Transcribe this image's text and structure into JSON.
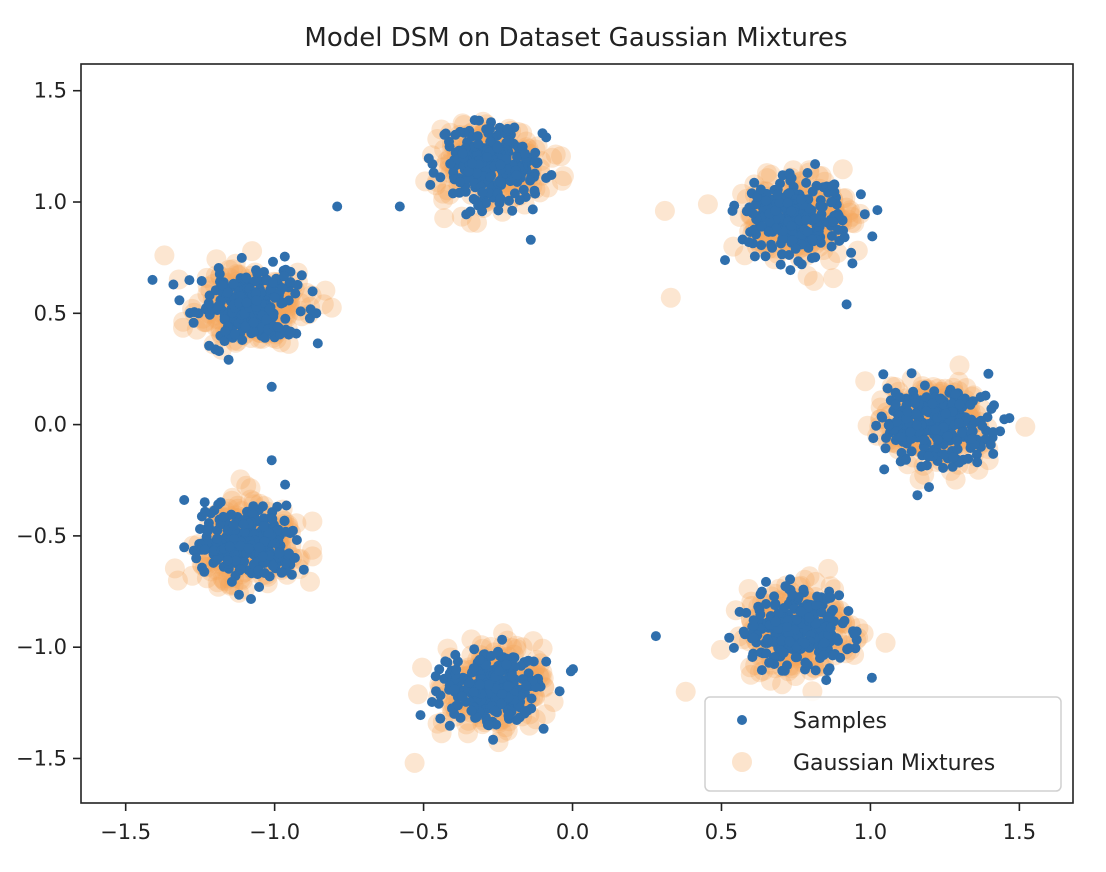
{
  "chart_data": {
    "type": "scatter",
    "title": "Model DSM on Dataset Gaussian Mixtures",
    "xlabel": "",
    "ylabel": "",
    "xlim": [
      -1.65,
      1.68
    ],
    "ylim": [
      -1.7,
      1.62
    ],
    "x_ticks": [
      -1.5,
      -1.0,
      -0.5,
      0.0,
      0.5,
      1.0,
      1.5
    ],
    "x_tick_labels": [
      "−1.5",
      "−1.0",
      "−0.5",
      "0.0",
      "0.5",
      "1.0",
      "1.5"
    ],
    "y_ticks": [
      1.5,
      1.0,
      0.5,
      0.0,
      -0.5,
      -1.0,
      -1.5
    ],
    "y_tick_labels": [
      "1.5",
      "1.0",
      "0.5",
      "0.0",
      "−0.5",
      "−1.0",
      "−1.5"
    ],
    "grid": false,
    "legend": {
      "position": "lower-right",
      "entries": [
        "Samples",
        "Gaussian Mixtures"
      ]
    },
    "colors": {
      "samples": "#2f6fad",
      "mixtures": "#f5a75a"
    },
    "series": [
      {
        "name": "Samples",
        "cluster_centers": [
          [
            -0.27,
            1.17
          ],
          [
            0.75,
            0.93
          ],
          [
            -1.08,
            0.53
          ],
          [
            1.22,
            0.0
          ],
          [
            -1.1,
            -0.53
          ],
          [
            0.75,
            -0.93
          ],
          [
            -0.27,
            -1.18
          ]
        ],
        "points_per_cluster": 260,
        "outliers": [
          [
            -1.41,
            0.65
          ],
          [
            -0.79,
            0.98
          ],
          [
            -0.58,
            0.98
          ],
          [
            0.28,
            -0.95
          ],
          [
            0.92,
            0.54
          ],
          [
            -1.01,
            0.17
          ],
          [
            -1.01,
            -0.16
          ],
          [
            -0.14,
            0.83
          ]
        ]
      },
      {
        "name": "Gaussian Mixtures",
        "cluster_centers": [
          [
            -0.27,
            1.17
          ],
          [
            0.75,
            0.93
          ],
          [
            -1.08,
            0.53
          ],
          [
            1.22,
            0.0
          ],
          [
            -1.1,
            -0.53
          ],
          [
            0.75,
            -0.93
          ],
          [
            -0.27,
            -1.18
          ]
        ],
        "points_per_cluster": 300,
        "outliers": [
          [
            0.31,
            0.96
          ],
          [
            0.33,
            0.57
          ],
          [
            -1.37,
            0.76
          ],
          [
            1.52,
            -0.01
          ],
          [
            -0.53,
            -1.52
          ],
          [
            0.38,
            -1.2
          ]
        ]
      }
    ]
  }
}
